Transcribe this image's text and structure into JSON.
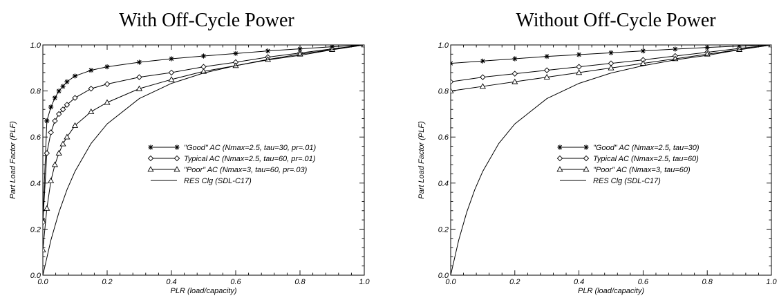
{
  "chart_data": [
    {
      "type": "line",
      "title": "With Off-Cycle Power",
      "xlabel": "PLR (load/capacity)",
      "ylabel": "Part Load Factor (PLF)",
      "xlim": [
        0.0,
        1.0
      ],
      "ylim": [
        0.0,
        1.0
      ],
      "xticks": [
        "0.0",
        "0.2",
        "0.4",
        "0.6",
        "0.8",
        "1.0"
      ],
      "yticks": [
        "0.0",
        "0.2",
        "0.4",
        "0.6",
        "0.8",
        "1.0"
      ],
      "grid": false,
      "legend_position": "center-right",
      "series": [
        {
          "name": "\"Good\" AC (Nmax=2.5, tau=30, pr=.01)",
          "marker": "star",
          "x": [
            0.0,
            0.0125,
            0.025,
            0.0375,
            0.05,
            0.0625,
            0.075,
            0.1,
            0.15,
            0.2,
            0.3,
            0.4,
            0.5,
            0.6,
            0.7,
            0.8,
            0.9,
            1.0
          ],
          "y": [
            0.24,
            0.67,
            0.73,
            0.77,
            0.8,
            0.82,
            0.84,
            0.865,
            0.89,
            0.905,
            0.925,
            0.94,
            0.952,
            0.963,
            0.974,
            0.983,
            0.992,
            1.0
          ]
        },
        {
          "name": "Typical AC (Nmax=2.5, tau=60, pr=.01)",
          "marker": "diamond",
          "x": [
            0.0,
            0.0125,
            0.025,
            0.0375,
            0.05,
            0.0625,
            0.075,
            0.1,
            0.15,
            0.2,
            0.3,
            0.4,
            0.5,
            0.6,
            0.7,
            0.8,
            0.9,
            1.0
          ],
          "y": [
            0.23,
            0.53,
            0.62,
            0.67,
            0.7,
            0.72,
            0.74,
            0.77,
            0.81,
            0.83,
            0.86,
            0.88,
            0.905,
            0.925,
            0.947,
            0.965,
            0.983,
            1.0
          ]
        },
        {
          "name": "\"Poor\" AC (Nmax=3, tau=60, pr=.03)",
          "marker": "triangle",
          "x": [
            0.0,
            0.0125,
            0.025,
            0.0375,
            0.05,
            0.0625,
            0.075,
            0.1,
            0.15,
            0.2,
            0.3,
            0.4,
            0.5,
            0.6,
            0.7,
            0.8,
            0.9,
            1.0
          ],
          "y": [
            0.11,
            0.29,
            0.41,
            0.48,
            0.53,
            0.57,
            0.6,
            0.65,
            0.71,
            0.75,
            0.81,
            0.85,
            0.885,
            0.91,
            0.937,
            0.96,
            0.98,
            1.0
          ]
        },
        {
          "name": "RES Clg (SDL-C17)",
          "marker": "none",
          "x": [
            0.0,
            0.025,
            0.05,
            0.075,
            0.1,
            0.15,
            0.2,
            0.3,
            0.4,
            0.5,
            0.6,
            0.7,
            0.8,
            0.9,
            1.0
          ],
          "y": [
            0.0,
            0.152,
            0.273,
            0.371,
            0.451,
            0.572,
            0.657,
            0.767,
            0.833,
            0.878,
            0.91,
            0.935,
            0.955,
            0.979,
            1.0
          ]
        }
      ]
    },
    {
      "type": "line",
      "title": "Without Off-Cycle Power",
      "xlabel": "PLR (load/capacity)",
      "ylabel": "Part Load Factor (PLF)",
      "xlim": [
        0.0,
        1.0
      ],
      "ylim": [
        0.0,
        1.0
      ],
      "xticks": [
        "0.0",
        "0.2",
        "0.4",
        "0.6",
        "0.8",
        "1.0"
      ],
      "yticks": [
        "0.0",
        "0.2",
        "0.4",
        "0.6",
        "0.8",
        "1.0"
      ],
      "grid": false,
      "legend_position": "center-right",
      "series": [
        {
          "name": "\"Good\" AC (Nmax=2.5, tau=30)",
          "marker": "star",
          "x": [
            0.0,
            0.1,
            0.2,
            0.3,
            0.4,
            0.5,
            0.6,
            0.7,
            0.8,
            0.9,
            1.0
          ],
          "y": [
            0.92,
            0.93,
            0.94,
            0.95,
            0.958,
            0.966,
            0.974,
            0.982,
            0.989,
            0.995,
            1.0
          ]
        },
        {
          "name": "Typical AC (Nmax=2.5, tau=60)",
          "marker": "diamond",
          "x": [
            0.0,
            0.1,
            0.2,
            0.3,
            0.4,
            0.5,
            0.6,
            0.7,
            0.8,
            0.9,
            1.0
          ],
          "y": [
            0.84,
            0.86,
            0.875,
            0.89,
            0.905,
            0.92,
            0.935,
            0.952,
            0.968,
            0.985,
            1.0
          ]
        },
        {
          "name": "\"Poor\" AC (Nmax=3, tau=60)",
          "marker": "triangle",
          "x": [
            0.0,
            0.1,
            0.2,
            0.3,
            0.4,
            0.5,
            0.6,
            0.7,
            0.8,
            0.9,
            1.0
          ],
          "y": [
            0.8,
            0.82,
            0.84,
            0.86,
            0.88,
            0.9,
            0.92,
            0.94,
            0.96,
            0.98,
            1.0
          ]
        },
        {
          "name": "RES Clg (SDL-C17)",
          "marker": "none",
          "x": [
            0.0,
            0.025,
            0.05,
            0.075,
            0.1,
            0.15,
            0.2,
            0.3,
            0.4,
            0.5,
            0.6,
            0.7,
            0.8,
            0.9,
            1.0
          ],
          "y": [
            0.0,
            0.152,
            0.273,
            0.371,
            0.451,
            0.572,
            0.657,
            0.767,
            0.833,
            0.878,
            0.91,
            0.935,
            0.955,
            0.979,
            1.0
          ]
        }
      ]
    }
  ]
}
